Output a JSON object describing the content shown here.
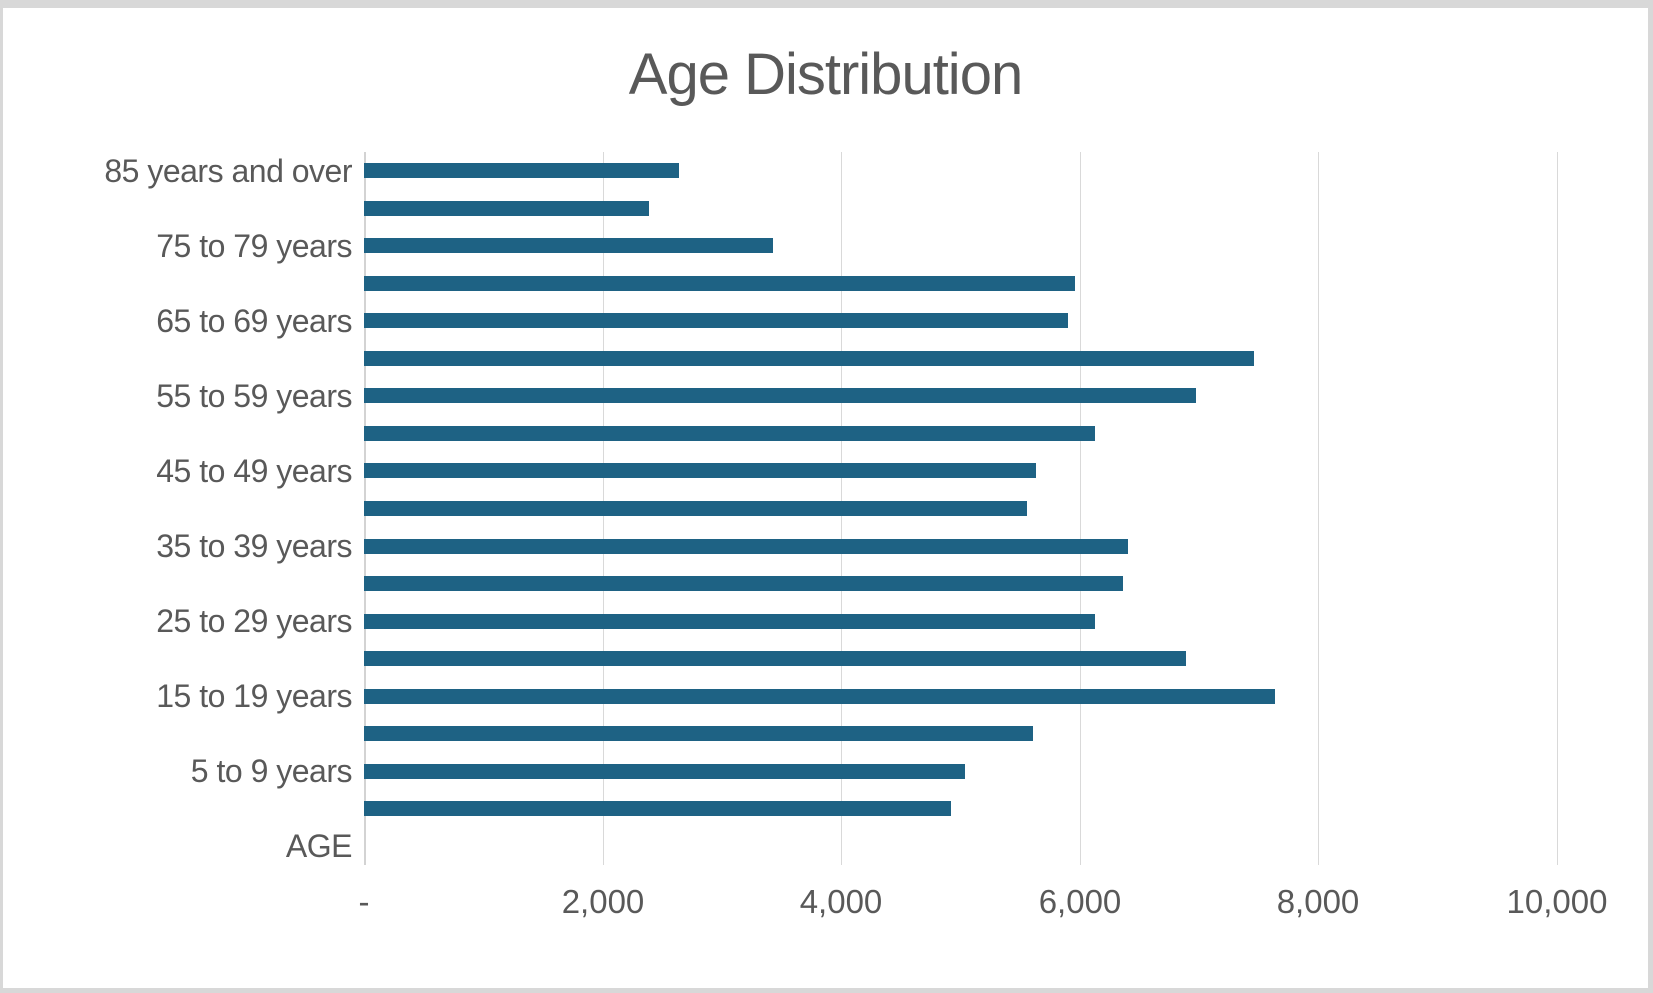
{
  "chart_data": {
    "type": "bar",
    "orientation": "horizontal",
    "title": "Age Distribution",
    "xlabel": "",
    "ylabel": "",
    "xlim": [
      0,
      10000
    ],
    "x_tick_interval": 2000,
    "x_tick_labels": [
      "-",
      "2,000",
      "4,000",
      "6,000",
      "8,000",
      "10,000"
    ],
    "grid": "vertical-gridlines-on",
    "legend": "none",
    "rows": [
      {
        "y_label": "85 years and over",
        "value": 2640
      },
      {
        "y_label": "",
        "value": 2390
      },
      {
        "y_label": "75 to 79 years",
        "value": 3430
      },
      {
        "y_label": "",
        "value": 5960
      },
      {
        "y_label": "65 to 69 years",
        "value": 5900
      },
      {
        "y_label": "",
        "value": 7460
      },
      {
        "y_label": "55 to 59 years",
        "value": 6970
      },
      {
        "y_label": "",
        "value": 6130
      },
      {
        "y_label": "45 to 49 years",
        "value": 5630
      },
      {
        "y_label": "",
        "value": 5560
      },
      {
        "y_label": "35 to 39 years",
        "value": 6400
      },
      {
        "y_label": "",
        "value": 6360
      },
      {
        "y_label": "25 to 29 years",
        "value": 6130
      },
      {
        "y_label": "",
        "value": 6890
      },
      {
        "y_label": "15 to 19 years",
        "value": 7640
      },
      {
        "y_label": "",
        "value": 5610
      },
      {
        "y_label": "5 to 9 years",
        "value": 5040
      },
      {
        "y_label": "",
        "value": 4920
      },
      {
        "y_label": "AGE",
        "value": null
      }
    ],
    "colors": {
      "bar": "#1e6284",
      "gridline": "#d9d9d9",
      "text": "#595959",
      "frame_border": "#d8d8d8",
      "background": "#ffffff"
    }
  }
}
